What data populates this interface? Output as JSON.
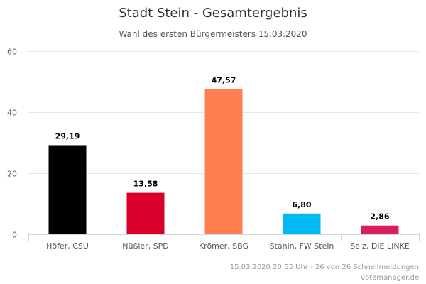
{
  "chart_data": {
    "type": "bar",
    "title": "Stadt Stein - Gesamtergebnis",
    "subtitle": "Wahl des ersten Bürgermeisters 15.03.2020",
    "categories": [
      "Höfer, CSU",
      "Nüßler, SPD",
      "Krömer, SBG",
      "Stanin, FW Stein",
      "Selz, DIE LINKE"
    ],
    "values": [
      29.19,
      13.58,
      47.57,
      6.8,
      2.86
    ],
    "value_labels": [
      "29,19",
      "13,58",
      "47,57",
      "6,80",
      "2,86"
    ],
    "colors": [
      "#000000",
      "#d8002a",
      "#ff7f50",
      "#00b9f2",
      "#d81e5b"
    ],
    "xlabel": "",
    "ylabel": "",
    "ylim": [
      0,
      60
    ],
    "yticks": [
      0,
      20,
      40,
      60
    ],
    "grid": true,
    "legend": "none"
  },
  "credits": {
    "line1": "15.03.2020 20:55 Uhr - 26 von 26 Schnellmeldungen",
    "line2": "votemanager.de"
  },
  "colors": {
    "grid": "#e6e6e6",
    "axis": "#ccd6eb"
  }
}
